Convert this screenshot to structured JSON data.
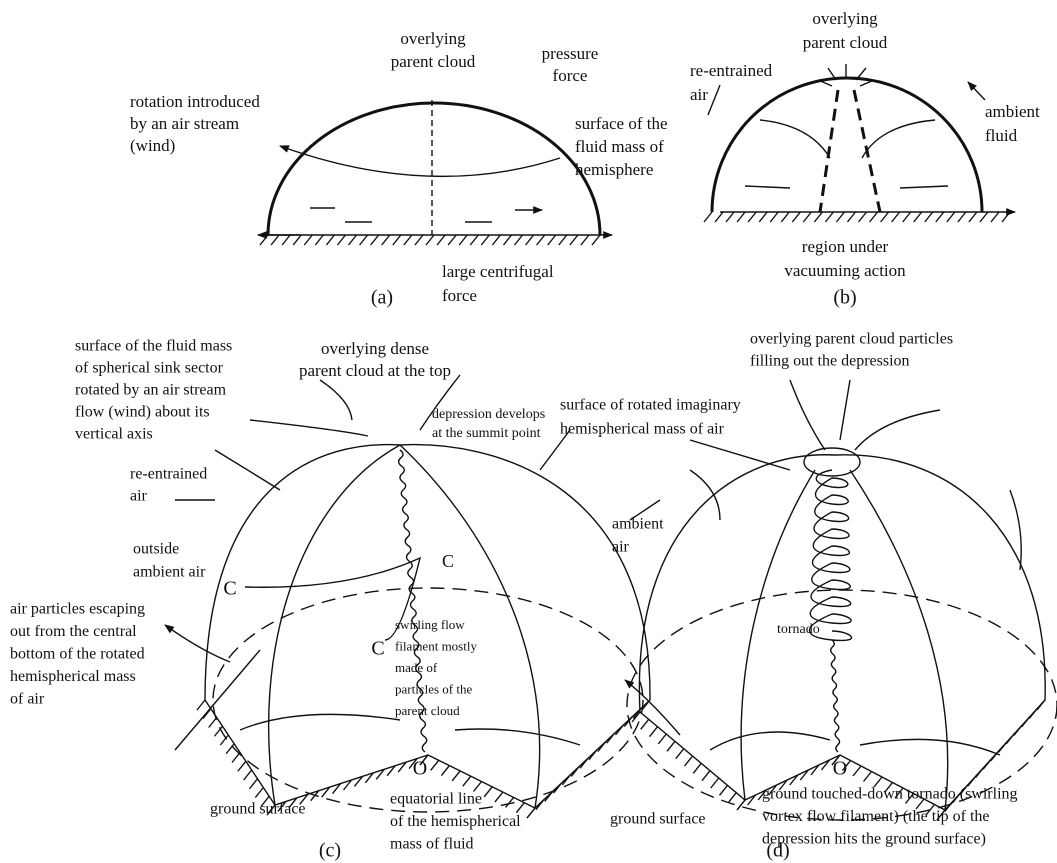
{
  "panels": [
    {
      "caption": "(a)",
      "labels": [
        {
          "lines": [
            "overlying",
            "parent cloud"
          ]
        },
        {
          "lines": [
            "pressure",
            "force"
          ]
        },
        {
          "lines": [
            "rotation introduced",
            "by an air stream",
            "(wind)"
          ]
        },
        {
          "lines": [
            "surface of the",
            "fluid mass of",
            "hemisphere"
          ]
        },
        {
          "lines": [
            "large centrifugal",
            "force"
          ]
        }
      ]
    },
    {
      "caption": "(b)",
      "labels": [
        {
          "lines": [
            "overlying",
            "parent cloud"
          ]
        },
        {
          "lines": [
            "re-entrained",
            "air"
          ]
        },
        {
          "lines": [
            "ambient",
            "fluid"
          ]
        },
        {
          "lines": [
            "region under",
            "vacuuming action"
          ]
        }
      ]
    },
    {
      "caption": "(c)",
      "labels": [
        {
          "lines": [
            "overlying dense",
            "parent cloud at the top"
          ]
        },
        {
          "lines": [
            "surface of the fluid mass",
            "of spherical sink sector",
            "rotated by an air stream",
            "flow (wind) about its",
            "vertical axis"
          ]
        },
        {
          "lines": [
            "depression develops",
            "at the summit point"
          ]
        },
        {
          "lines": [
            "re-entrained",
            "air"
          ]
        },
        {
          "lines": [
            "outside",
            "ambient air"
          ]
        },
        {
          "lines": [
            "air particles escaping",
            "out from the central",
            "bottom of the rotated",
            "hemispherical mass",
            "of air"
          ]
        },
        {
          "lines": [
            "C"
          ]
        },
        {
          "lines": [
            "C"
          ]
        },
        {
          "lines": [
            "C"
          ]
        },
        {
          "lines": [
            "swirling flow",
            "filament mostly",
            "made of",
            "particles of the",
            "parent cloud"
          ]
        },
        {
          "lines": [
            "O"
          ]
        },
        {
          "lines": [
            "ground surface"
          ]
        },
        {
          "lines": [
            "equatorial line",
            "of the hemispherical",
            "mass of fluid"
          ]
        }
      ]
    },
    {
      "caption": "(d)",
      "labels": [
        {
          "lines": [
            "overlying parent cloud particles",
            "filling out the depression"
          ]
        },
        {
          "lines": [
            "surface of rotated imaginary",
            "hemispherical mass of air"
          ]
        },
        {
          "lines": [
            "ambient",
            "air"
          ]
        },
        {
          "lines": [
            "tornado"
          ]
        },
        {
          "lines": [
            "O"
          ]
        },
        {
          "lines": [
            "ground surface"
          ]
        },
        {
          "lines": [
            "ground touched-down tornado (swirling",
            "vortex flow filament) (the tip of the",
            "depression hits the ground surface)"
          ]
        }
      ]
    }
  ]
}
